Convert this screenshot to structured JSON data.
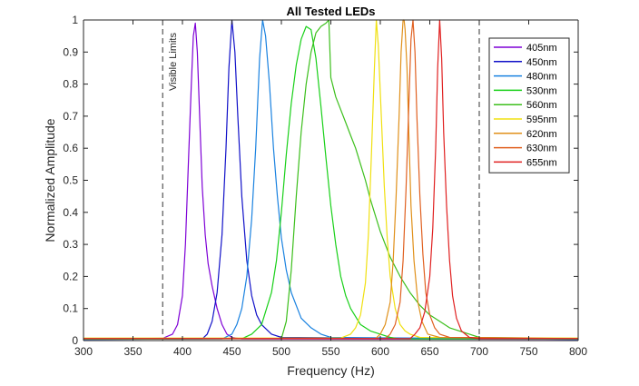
{
  "chart_data": {
    "type": "line",
    "title": "All Tested LEDs",
    "xlabel": "Frequency (Hz)",
    "ylabel": "Normalized Amplitude",
    "xlim": [
      300,
      800
    ],
    "ylim": [
      0,
      1
    ],
    "x_ticks": [
      300,
      350,
      400,
      450,
      500,
      550,
      600,
      650,
      700,
      750,
      800
    ],
    "y_ticks": [
      0,
      0.1,
      0.2,
      0.3,
      0.4,
      0.5,
      0.6,
      0.7,
      0.8,
      0.9,
      1
    ],
    "grid": false,
    "legend_position": "top-right",
    "annotations": [
      {
        "text": "Visible Limits",
        "lines_at_x": [
          380,
          700
        ]
      }
    ],
    "series": [
      {
        "name": "405nm",
        "color": "#7e00d6",
        "x": [
          300,
          380,
          390,
          395,
          400,
          403,
          406,
          409,
          411,
          413,
          415,
          418,
          420,
          423,
          426,
          430,
          435,
          440,
          445,
          450,
          460,
          800
        ],
        "y": [
          0.005,
          0.007,
          0.02,
          0.05,
          0.14,
          0.3,
          0.55,
          0.8,
          0.95,
          0.99,
          0.9,
          0.65,
          0.48,
          0.33,
          0.24,
          0.17,
          0.1,
          0.05,
          0.02,
          0.01,
          0.005,
          0.004
        ]
      },
      {
        "name": "450nm",
        "color": "#1010c8",
        "x": [
          300,
          420,
          425,
          430,
          435,
          440,
          444,
          447,
          450,
          453,
          456,
          460,
          465,
          470,
          475,
          480,
          490,
          500,
          800
        ],
        "y": [
          0.004,
          0.005,
          0.02,
          0.06,
          0.15,
          0.33,
          0.6,
          0.85,
          1.0,
          0.9,
          0.7,
          0.45,
          0.25,
          0.14,
          0.08,
          0.05,
          0.02,
          0.01,
          0.004
        ]
      },
      {
        "name": "480nm",
        "color": "#1a82e0",
        "x": [
          300,
          440,
          450,
          455,
          460,
          465,
          470,
          474,
          478,
          481,
          484,
          488,
          492,
          496,
          500,
          505,
          510,
          520,
          530,
          540,
          550,
          800
        ],
        "y": [
          0.004,
          0.005,
          0.02,
          0.05,
          0.1,
          0.2,
          0.38,
          0.6,
          0.88,
          1.0,
          0.95,
          0.8,
          0.6,
          0.45,
          0.32,
          0.22,
          0.15,
          0.07,
          0.04,
          0.02,
          0.01,
          0.004
        ]
      },
      {
        "name": "530nm",
        "color": "#18d018",
        "x": [
          300,
          460,
          470,
          480,
          490,
          495,
          500,
          505,
          510,
          515,
          520,
          525,
          530,
          535,
          540,
          545,
          550,
          555,
          560,
          565,
          570,
          580,
          590,
          600,
          610,
          620,
          800
        ],
        "y": [
          0.005,
          0.006,
          0.02,
          0.05,
          0.15,
          0.25,
          0.4,
          0.58,
          0.74,
          0.86,
          0.94,
          0.98,
          0.97,
          0.88,
          0.73,
          0.57,
          0.42,
          0.3,
          0.2,
          0.14,
          0.1,
          0.05,
          0.03,
          0.02,
          0.01,
          0.005,
          0.005
        ]
      },
      {
        "name": "560nm",
        "color": "#3cbf1c",
        "x": [
          300,
          500,
          505,
          510,
          515,
          520,
          525,
          530,
          535,
          540,
          545,
          548,
          550,
          555,
          560,
          565,
          570,
          575,
          580,
          585,
          590,
          600,
          610,
          620,
          630,
          640,
          650,
          660,
          670,
          680,
          690,
          700,
          800
        ],
        "y": [
          0.005,
          0.006,
          0.06,
          0.22,
          0.45,
          0.65,
          0.8,
          0.9,
          0.96,
          0.98,
          0.99,
          1.0,
          0.82,
          0.76,
          0.72,
          0.68,
          0.64,
          0.6,
          0.55,
          0.5,
          0.44,
          0.34,
          0.26,
          0.2,
          0.15,
          0.11,
          0.08,
          0.06,
          0.04,
          0.03,
          0.02,
          0.01,
          0.006
        ]
      },
      {
        "name": "595nm",
        "color": "#f0e010",
        "x": [
          300,
          560,
          570,
          575,
          580,
          585,
          588,
          591,
          594,
          596,
          598,
          601,
          604,
          607,
          610,
          615,
          620,
          625,
          630,
          640,
          800
        ],
        "y": [
          0.008,
          0.008,
          0.02,
          0.04,
          0.08,
          0.18,
          0.33,
          0.58,
          0.85,
          1.0,
          0.92,
          0.7,
          0.48,
          0.32,
          0.2,
          0.1,
          0.05,
          0.03,
          0.02,
          0.01,
          0.008
        ]
      },
      {
        "name": "620nm",
        "color": "#e0901a",
        "x": [
          300,
          595,
          600,
          605,
          610,
          613,
          616,
          619,
          621,
          623,
          624,
          625,
          627,
          629,
          631,
          634,
          638,
          642,
          648,
          660,
          800
        ],
        "y": [
          0.006,
          0.006,
          0.02,
          0.05,
          0.12,
          0.25,
          0.45,
          0.7,
          0.9,
          1.0,
          1.0,
          0.97,
          0.85,
          0.63,
          0.42,
          0.25,
          0.12,
          0.06,
          0.02,
          0.01,
          0.006
        ]
      },
      {
        "name": "630nm",
        "color": "#e06020",
        "x": [
          300,
          605,
          610,
          615,
          620,
          623,
          626,
          629,
          631,
          633,
          635,
          637,
          640,
          643,
          646,
          650,
          655,
          660,
          670,
          800
        ],
        "y": [
          0.006,
          0.006,
          0.02,
          0.05,
          0.12,
          0.25,
          0.47,
          0.75,
          0.94,
          1.0,
          0.9,
          0.7,
          0.45,
          0.27,
          0.15,
          0.08,
          0.04,
          0.02,
          0.01,
          0.006
        ]
      },
      {
        "name": "655nm",
        "color": "#e02020",
        "x": [
          300,
          630,
          635,
          640,
          645,
          650,
          653,
          656,
          658,
          660,
          662,
          664,
          667,
          670,
          673,
          677,
          682,
          690,
          700,
          800
        ],
        "y": [
          0.006,
          0.006,
          0.02,
          0.04,
          0.09,
          0.2,
          0.35,
          0.6,
          0.85,
          1.0,
          0.88,
          0.65,
          0.42,
          0.25,
          0.14,
          0.07,
          0.03,
          0.01,
          0.006,
          0.006
        ]
      }
    ]
  }
}
